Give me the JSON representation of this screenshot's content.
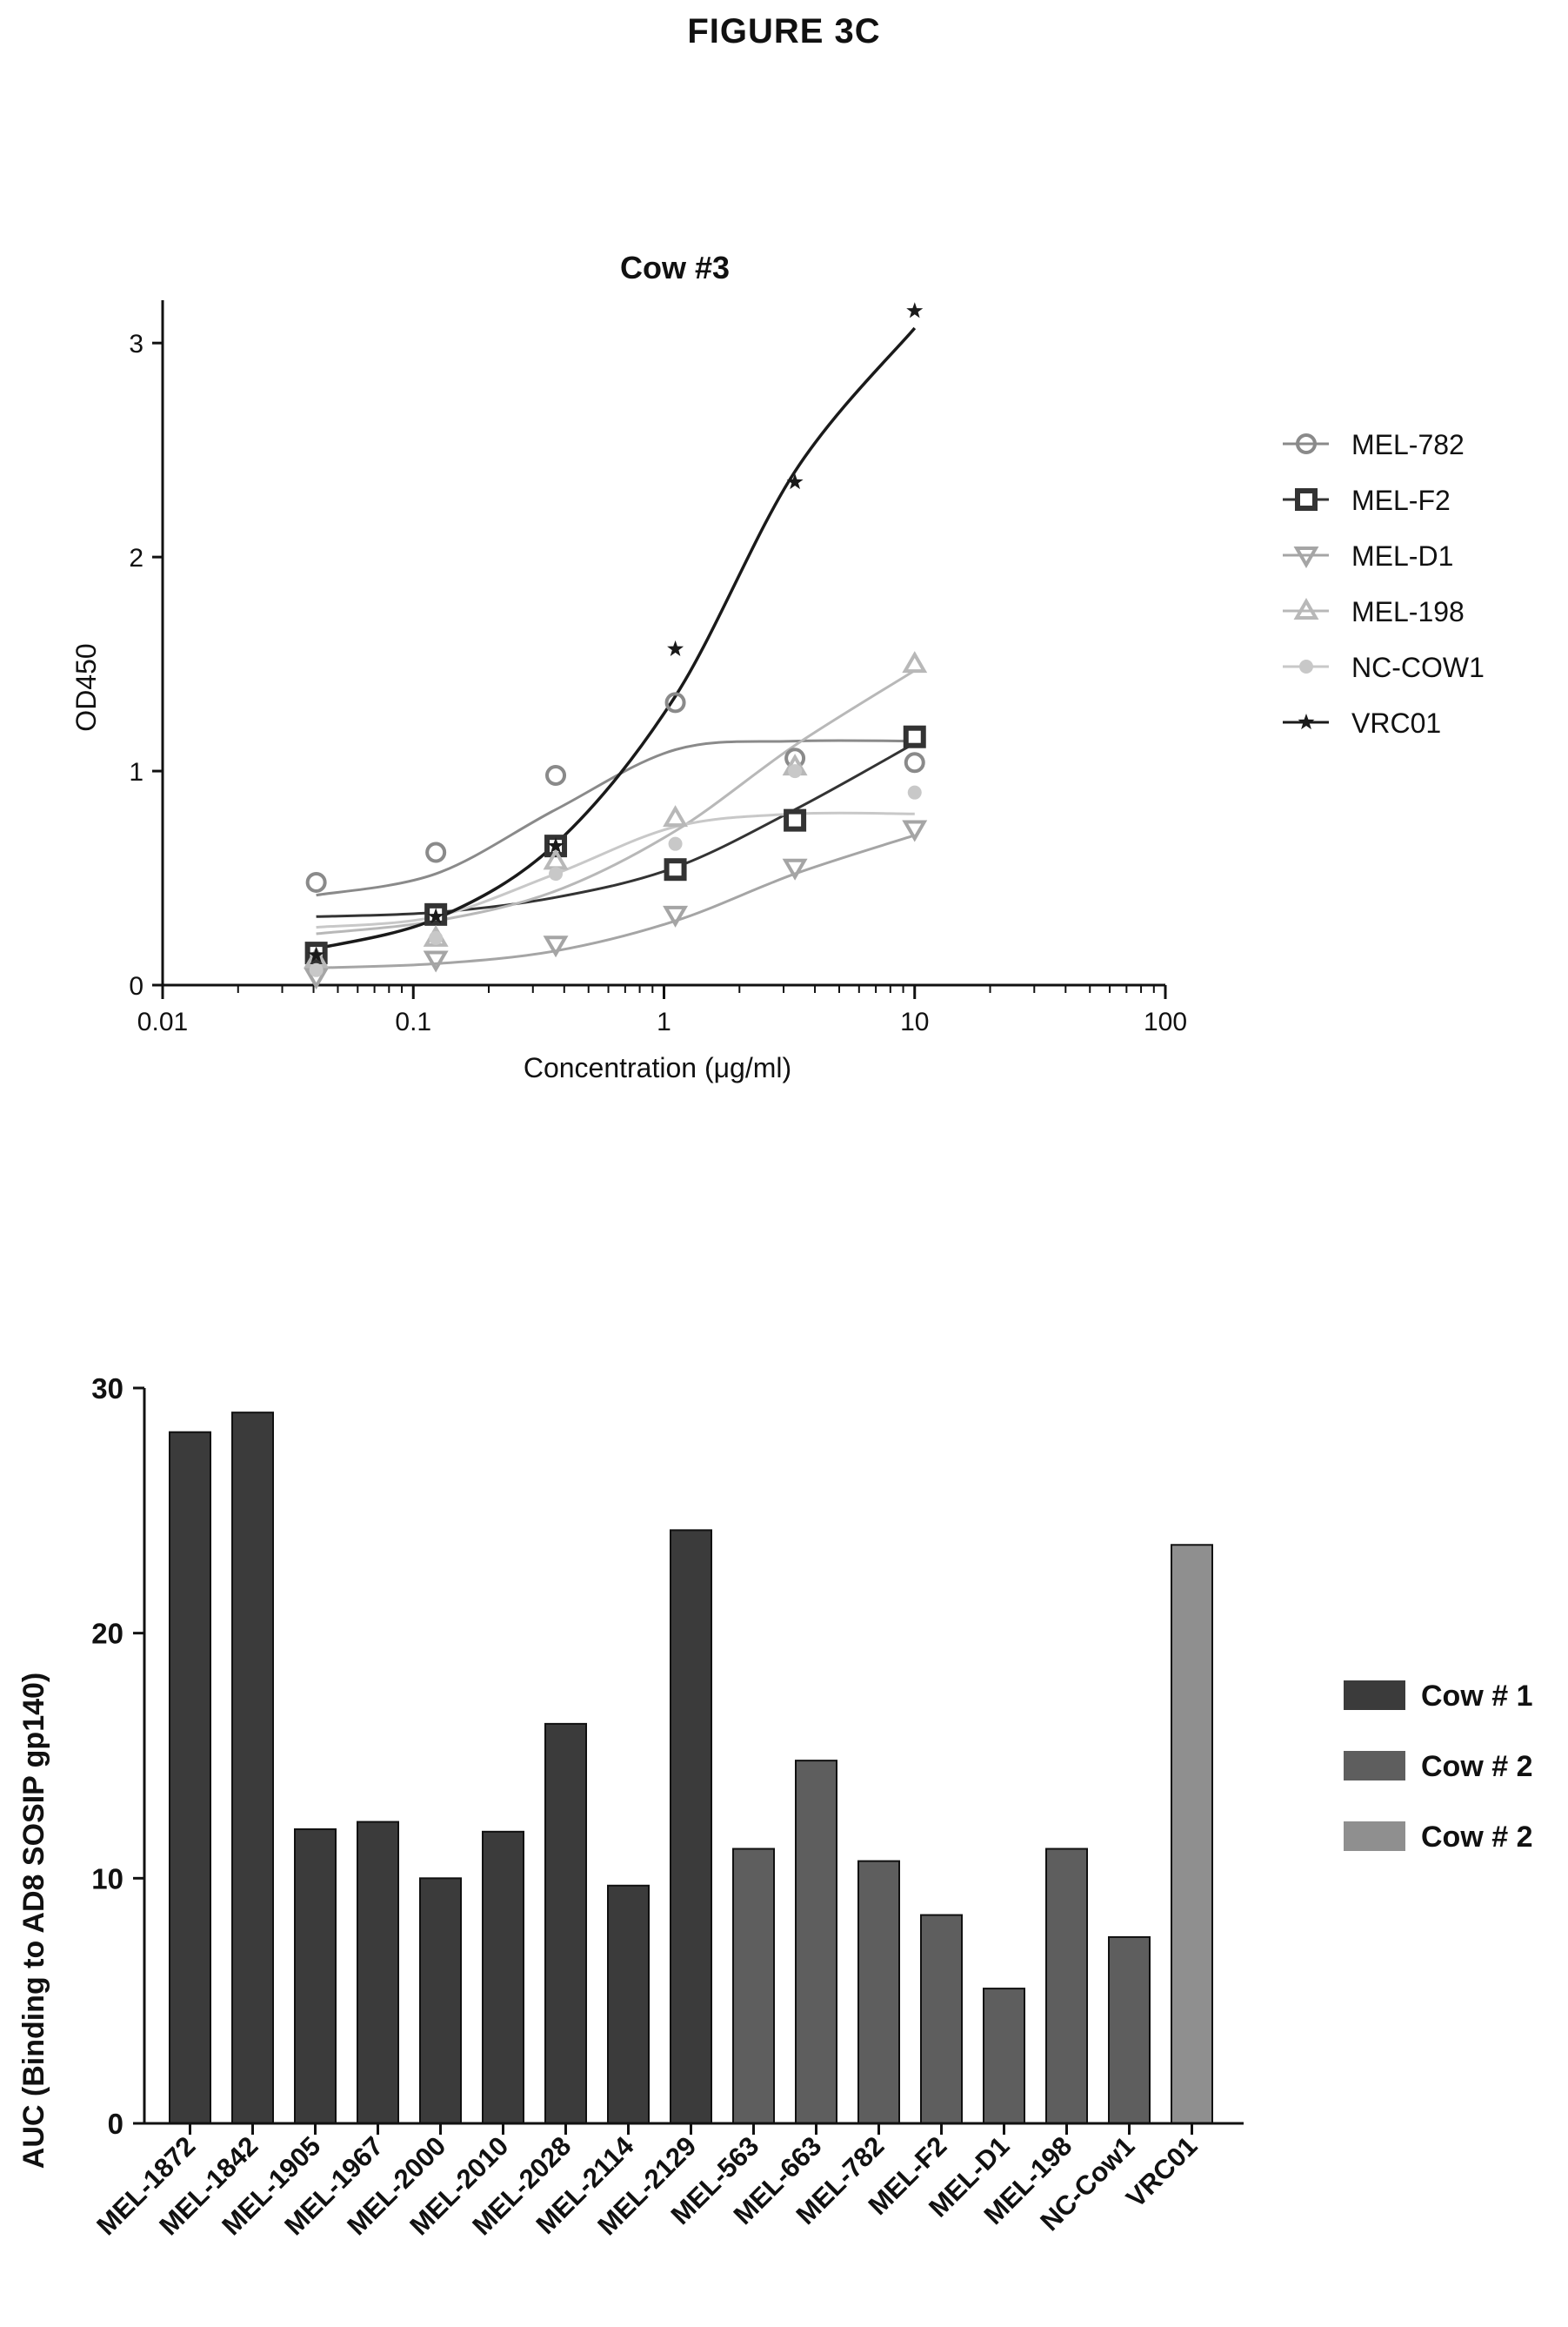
{
  "figure_title": "FIGURE 3C",
  "chart_data": [
    {
      "type": "line",
      "title": "Cow #3",
      "xlabel": "Concentration (μg/ml)",
      "ylabel": "OD450",
      "xscale": "log",
      "xlim": [
        0.01,
        100
      ],
      "ylim": [
        0,
        3.2
      ],
      "x_ticks": [
        0.01,
        0.1,
        1,
        10,
        100
      ],
      "x_tick_labels": [
        "0.01",
        "0.1",
        "1",
        "10",
        "100"
      ],
      "y_ticks": [
        0,
        1,
        2,
        3
      ],
      "y_tick_labels": [
        "0",
        "1",
        "2",
        "3"
      ],
      "grid": false,
      "legend_position": "right",
      "x": [
        0.041,
        0.123,
        0.37,
        1.11,
        3.33,
        10
      ],
      "series": [
        {
          "name": "MEL-782",
          "marker": "circle-open",
          "color": "#8a8a8a",
          "values": [
            0.48,
            0.62,
            0.98,
            1.32,
            1.06,
            1.04
          ],
          "fit": [
            0.42,
            0.52,
            0.82,
            1.1,
            1.14,
            1.14
          ]
        },
        {
          "name": "MEL-F2",
          "marker": "square-open-bold",
          "color": "#333333",
          "values": [
            0.15,
            0.33,
            0.65,
            0.54,
            0.77,
            1.16
          ],
          "fit": [
            0.32,
            0.34,
            0.41,
            0.55,
            0.82,
            1.13
          ]
        },
        {
          "name": "MEL-D1",
          "marker": "triangle-down-open",
          "color": "#a5a5a5",
          "values": [
            0.04,
            0.12,
            0.19,
            0.33,
            0.55,
            0.73
          ],
          "fit": [
            0.08,
            0.1,
            0.16,
            0.3,
            0.52,
            0.7
          ]
        },
        {
          "name": "MEL-198",
          "marker": "triangle-up-open",
          "color": "#b8b8b8",
          "values": [
            0.12,
            0.22,
            0.58,
            0.78,
            1.02,
            1.5
          ],
          "fit": [
            0.24,
            0.3,
            0.44,
            0.72,
            1.12,
            1.47
          ]
        },
        {
          "name": "NC-COW1",
          "marker": "circle-filled",
          "color": "#c8c8c8",
          "values": [
            0.07,
            0.22,
            0.52,
            0.66,
            1.0,
            0.9
          ],
          "fit": [
            0.27,
            0.32,
            0.52,
            0.74,
            0.8,
            0.8
          ]
        },
        {
          "name": "VRC01",
          "marker": "star",
          "color": "#1a1a1a",
          "values": [
            0.14,
            0.32,
            0.65,
            1.57,
            2.35,
            3.15
          ],
          "fit": [
            0.17,
            0.31,
            0.66,
            1.35,
            2.4,
            3.07
          ]
        }
      ]
    },
    {
      "type": "bar",
      "title": "",
      "xlabel": "",
      "ylabel": "AUC (Binding to AD8 SOSIP gp140)",
      "ylim": [
        0,
        30
      ],
      "y_ticks": [
        0,
        10,
        20,
        30
      ],
      "y_tick_labels": [
        "0",
        "10",
        "20",
        "30"
      ],
      "grid": false,
      "legend_position": "right",
      "categories": [
        "MEL-1872",
        "MEL-1842",
        "MEL-1905",
        "MEL-1967",
        "MEL-2000",
        "MEL-2010",
        "MEL-2028",
        "MEL-2114",
        "MEL-2129",
        "MEL-563",
        "MEL-663",
        "MEL-782",
        "MEL-F2",
        "MEL-D1",
        "MEL-198",
        "NC-Cow1",
        "VRC01"
      ],
      "values": [
        28.2,
        29.0,
        12.0,
        12.3,
        10.0,
        11.9,
        16.3,
        9.7,
        24.2,
        11.2,
        14.8,
        10.7,
        8.5,
        5.5,
        11.2,
        7.6,
        23.6
      ],
      "groups": [
        0,
        0,
        0,
        0,
        0,
        0,
        0,
        0,
        0,
        1,
        1,
        1,
        1,
        1,
        1,
        1,
        2
      ],
      "legend": [
        {
          "name": "Cow # 1",
          "color": "#3b3b3b"
        },
        {
          "name": "Cow # 2",
          "color": "#5e5e5e"
        },
        {
          "name": "Cow # 2",
          "color": "#8f8f8f"
        }
      ]
    }
  ]
}
